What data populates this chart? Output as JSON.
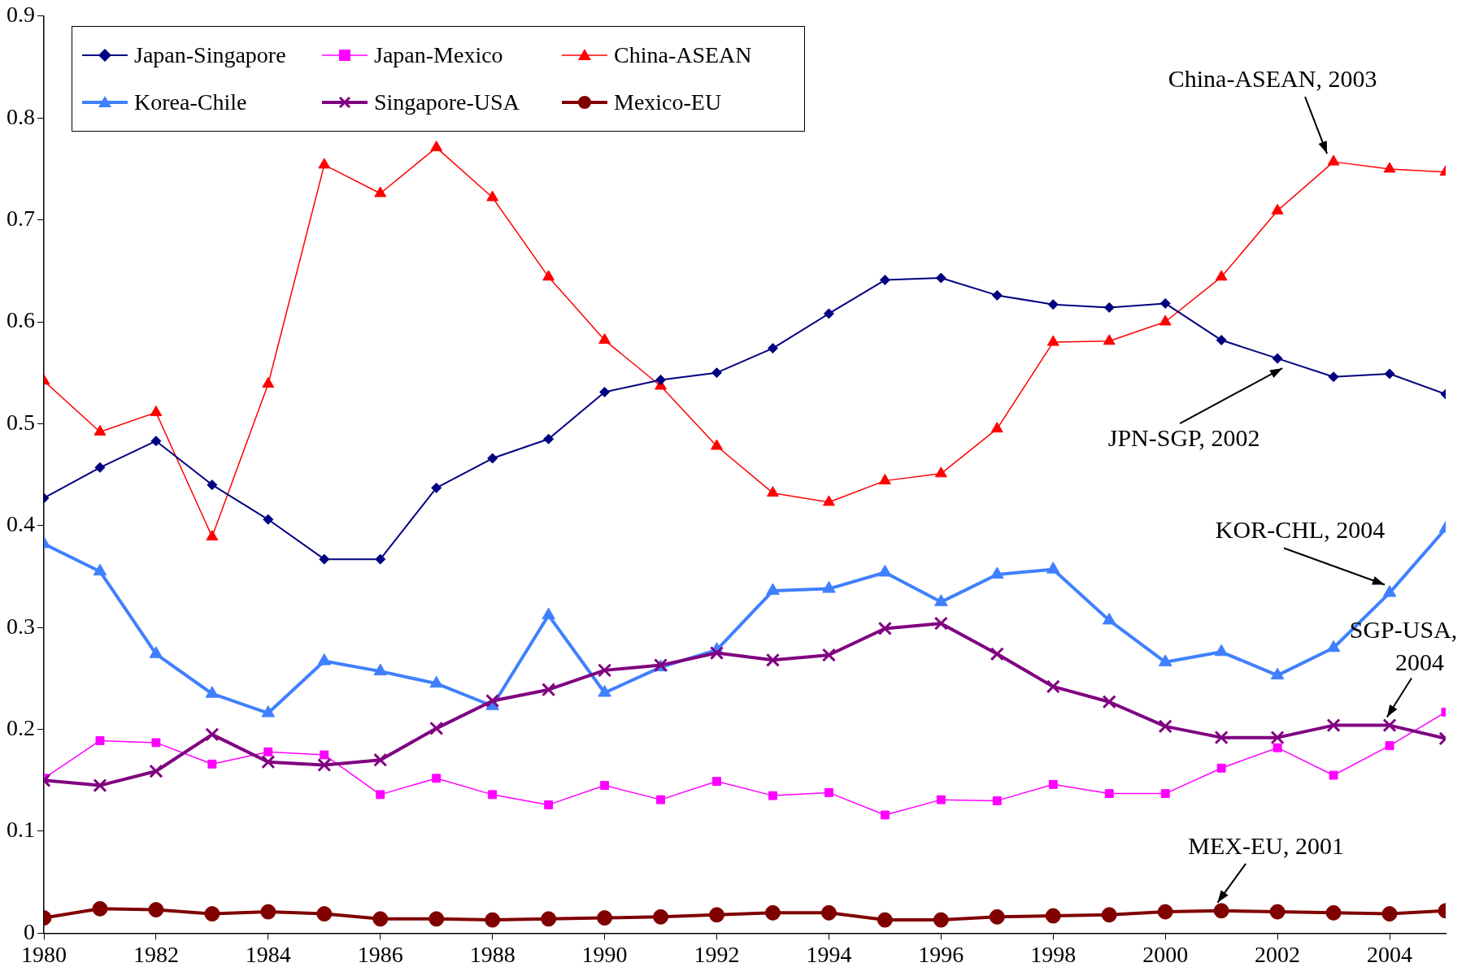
{
  "chart_data": {
    "type": "line",
    "x": [
      1980,
      1981,
      1982,
      1983,
      1984,
      1985,
      1986,
      1987,
      1988,
      1989,
      1990,
      1991,
      1992,
      1993,
      1994,
      1995,
      1996,
      1997,
      1998,
      1999,
      2000,
      2001,
      2002,
      2003,
      2004,
      2005
    ],
    "series": [
      {
        "name": "Japan-Singapore",
        "color": "#000080",
        "marker": "diamond",
        "values": [
          0.427,
          0.457,
          0.483,
          0.44,
          0.406,
          0.367,
          0.367,
          0.437,
          0.466,
          0.485,
          0.531,
          0.543,
          0.55,
          0.574,
          0.608,
          0.641,
          0.643,
          0.626,
          0.617,
          0.614,
          0.618,
          0.582,
          0.564,
          0.546,
          0.549,
          0.529
        ]
      },
      {
        "name": "Japan-Mexico",
        "color": "#ff00ff",
        "marker": "square",
        "values": [
          0.152,
          0.189,
          0.187,
          0.166,
          0.178,
          0.175,
          0.136,
          0.152,
          0.136,
          0.126,
          0.145,
          0.131,
          0.149,
          0.135,
          0.138,
          0.116,
          0.131,
          0.13,
          0.146,
          0.137,
          0.137,
          0.162,
          0.182,
          0.155,
          0.184,
          0.217
        ]
      },
      {
        "name": "China-ASEAN",
        "color": "#ff0000",
        "marker": "triangle",
        "values": [
          0.542,
          0.492,
          0.511,
          0.389,
          0.539,
          0.754,
          0.726,
          0.771,
          0.722,
          0.644,
          0.582,
          0.537,
          0.478,
          0.432,
          0.423,
          0.444,
          0.451,
          0.495,
          0.58,
          0.581,
          0.6,
          0.644,
          0.709,
          0.757,
          0.75,
          0.747
        ]
      },
      {
        "name": "Korea-Chile",
        "color": "#4080ff",
        "marker": "triangle",
        "values": [
          0.382,
          0.355,
          0.274,
          0.235,
          0.216,
          0.267,
          0.257,
          0.245,
          0.223,
          0.312,
          0.236,
          0.261,
          0.278,
          0.336,
          0.338,
          0.354,
          0.325,
          0.352,
          0.357,
          0.307,
          0.266,
          0.276,
          0.253,
          0.28,
          0.334,
          0.397
        ]
      },
      {
        "name": "Singapore-USA",
        "color": "#800080",
        "marker": "cross",
        "values": [
          0.15,
          0.145,
          0.159,
          0.195,
          0.168,
          0.165,
          0.17,
          0.201,
          0.228,
          0.239,
          0.258,
          0.263,
          0.275,
          0.268,
          0.273,
          0.299,
          0.304,
          0.274,
          0.242,
          0.227,
          0.203,
          0.192,
          0.192,
          0.204,
          0.204,
          0.191
        ]
      },
      {
        "name": "Mexico-EU",
        "color": "#800000",
        "marker": "circle",
        "values": [
          0.015,
          0.024,
          0.023,
          0.019,
          0.021,
          0.019,
          0.014,
          0.014,
          0.013,
          0.014,
          0.015,
          0.016,
          0.018,
          0.02,
          0.02,
          0.013,
          0.013,
          0.016,
          0.017,
          0.018,
          0.021,
          0.022,
          0.021,
          0.02,
          0.019,
          0.022
        ]
      }
    ],
    "xlim": [
      1980,
      2005
    ],
    "xticks": [
      1980,
      1982,
      1984,
      1986,
      1988,
      1990,
      1992,
      1994,
      1996,
      1998,
      2000,
      2002,
      2004
    ],
    "ylim": [
      0,
      0.9
    ],
    "yticks": [
      0,
      0.1,
      0.2,
      0.3,
      0.4,
      0.5,
      0.6,
      0.7,
      0.8,
      0.9
    ],
    "grid": false,
    "legend": "top left",
    "line_style": "solid",
    "annotations": [
      {
        "text": "China-ASEAN, 2003",
        "x": 2003,
        "y": 0.757
      },
      {
        "text": "JPN-SGP, 2002",
        "x": 2002,
        "y": 0.564
      },
      {
        "text": "KOR-CHL, 2004",
        "x": 2004,
        "y": 0.334
      },
      {
        "text": "SGP-USA, 2004",
        "x": 2004,
        "y": 0.204
      },
      {
        "text": "MEX-EU, 2001",
        "x": 2001,
        "y": 0.022
      }
    ]
  }
}
